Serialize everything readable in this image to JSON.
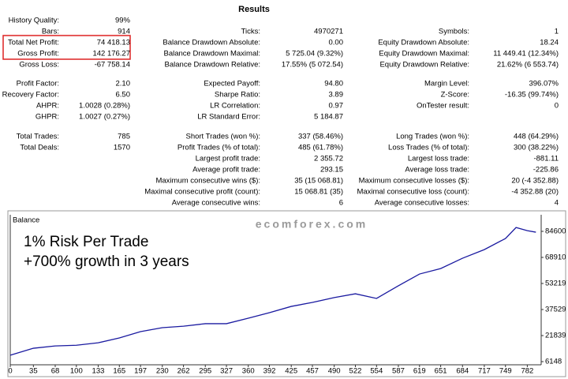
{
  "results": {
    "title": "Results",
    "rows": [
      [
        {
          "label": "History Quality:",
          "value": "99%"
        },
        null,
        null
      ],
      [
        {
          "label": "Bars:",
          "value": "914"
        },
        {
          "label": "Ticks:",
          "value": "4970271"
        },
        {
          "label": "Symbols:",
          "value": "1"
        }
      ],
      [
        {
          "label": "Total Net Profit:",
          "value": "74 418.13"
        },
        {
          "label": "Balance Drawdown Absolute:",
          "value": "0.00"
        },
        {
          "label": "Equity Drawdown Absolute:",
          "value": "18.24"
        }
      ],
      [
        {
          "label": "Gross Profit:",
          "value": "142 176.27"
        },
        {
          "label": "Balance Drawdown Maximal:",
          "value": "5 725.04 (9.32%)"
        },
        {
          "label": "Equity Drawdown Maximal:",
          "value": "11 449.41 (12.34%)"
        }
      ],
      [
        {
          "label": "Gross Loss:",
          "value": "-67 758.14"
        },
        {
          "label": "Balance Drawdown Relative:",
          "value": "17.55% (5 072.54)"
        },
        {
          "label": "Equity Drawdown Relative:",
          "value": "21.62% (6 553.74)"
        }
      ],
      [
        {
          "label": "Profit Factor:",
          "value": "2.10"
        },
        {
          "label": "Expected Payoff:",
          "value": "94.80"
        },
        {
          "label": "Margin Level:",
          "value": "396.07%"
        }
      ],
      [
        {
          "label": "Recovery Factor:",
          "value": "6.50"
        },
        {
          "label": "Sharpe Ratio:",
          "value": "3.89"
        },
        {
          "label": "Z-Score:",
          "value": "-16.35 (99.74%)"
        }
      ],
      [
        {
          "label": "AHPR:",
          "value": "1.0028 (0.28%)"
        },
        {
          "label": "LR Correlation:",
          "value": "0.97"
        },
        {
          "label": "OnTester result:",
          "value": "0"
        }
      ],
      [
        {
          "label": "GHPR:",
          "value": "1.0027 (0.27%)"
        },
        {
          "label": "LR Standard Error:",
          "value": "5 184.87"
        },
        null
      ],
      [
        {
          "label": "Total Trades:",
          "value": "785"
        },
        {
          "label": "Short Trades (won %):",
          "value": "337 (58.46%)"
        },
        {
          "label": "Long Trades (won %):",
          "value": "448 (64.29%)"
        }
      ],
      [
        {
          "label": "Total Deals:",
          "value": "1570"
        },
        {
          "label": "Profit Trades (% of total):",
          "value": "485 (61.78%)"
        },
        {
          "label": "Loss Trades (% of total):",
          "value": "300 (38.22%)"
        }
      ],
      [
        null,
        {
          "label": "Largest profit trade:",
          "value": "2 355.72"
        },
        {
          "label": "Largest loss trade:",
          "value": "-881.11"
        }
      ],
      [
        null,
        {
          "label": "Average profit trade:",
          "value": "293.15"
        },
        {
          "label": "Average loss trade:",
          "value": "-225.86"
        }
      ],
      [
        null,
        {
          "label": "Maximum consecutive wins ($):",
          "value": "35 (15 068.81)"
        },
        {
          "label": "Maximum consecutive losses ($):",
          "value": "20 (-4 352.88)"
        }
      ],
      [
        null,
        {
          "label": "Maximal consecutive profit (count):",
          "value": "15 068.81 (35)"
        },
        {
          "label": "Maximal consecutive loss (count):",
          "value": "-4 352.88 (20)"
        }
      ],
      [
        null,
        {
          "label": "Average consecutive wins:",
          "value": "6"
        },
        {
          "label": "Average consecutive losses:",
          "value": "4"
        }
      ]
    ]
  },
  "watermark": "ecomforex.com",
  "chart_data": {
    "type": "line",
    "title": "Balance",
    "annotations": [
      "1% Risk Per Trade",
      "+700% growth in 3 years"
    ],
    "x": [
      0,
      35,
      68,
      100,
      133,
      165,
      197,
      230,
      262,
      295,
      327,
      360,
      392,
      425,
      457,
      490,
      522,
      554,
      587,
      619,
      651,
      684,
      717,
      749,
      765,
      782,
      795
    ],
    "series": [
      {
        "name": "Balance",
        "color": "#1a1aa0",
        "values": [
          10000,
          14200,
          15600,
          16000,
          17500,
          20400,
          24200,
          26600,
          27500,
          29000,
          29000,
          32300,
          35600,
          39400,
          41800,
          44700,
          47000,
          44200,
          51800,
          58900,
          62200,
          68400,
          73600,
          80300,
          86900,
          85000,
          84100
        ]
      }
    ],
    "xlim": [
      0,
      803
    ],
    "ylim": [
      4246,
      94585
    ],
    "xticks": [
      0,
      35,
      68,
      100,
      133,
      165,
      197,
      230,
      262,
      295,
      327,
      360,
      392,
      425,
      457,
      490,
      522,
      554,
      587,
      619,
      651,
      684,
      717,
      749,
      782
    ],
    "yticks": [
      6148,
      21839,
      37529,
      53219,
      68910,
      84600
    ],
    "grid": false
  }
}
